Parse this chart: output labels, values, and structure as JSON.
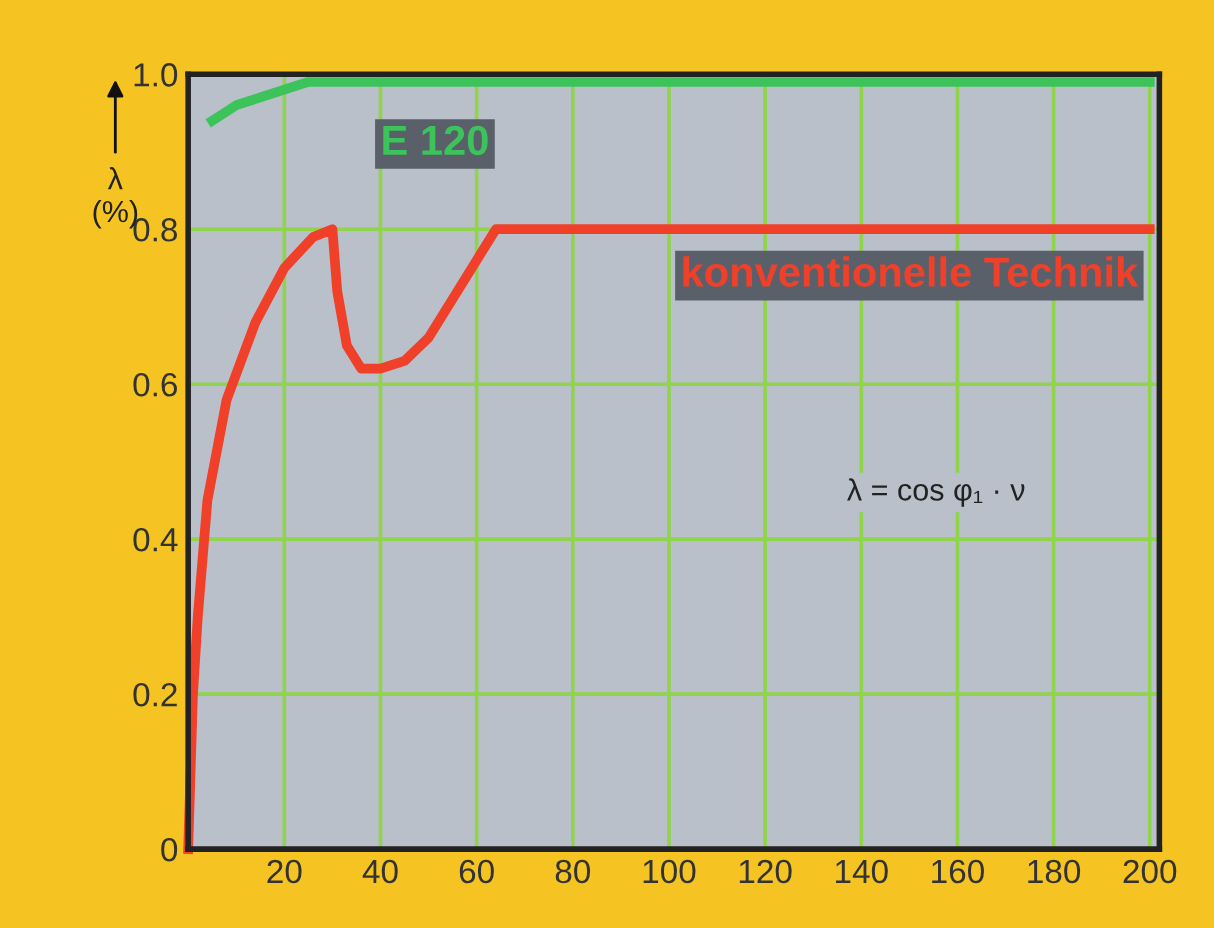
{
  "chart_data": {
    "type": "line",
    "ylabel": "λ\n(%)",
    "xlim": [
      0,
      202
    ],
    "ylim": [
      0,
      1.0
    ],
    "xticks": [
      20,
      40,
      60,
      80,
      100,
      120,
      140,
      160,
      180,
      200
    ],
    "yticks": [
      0,
      0.2,
      0.4,
      0.6,
      0.8,
      {
        "value": 1.0,
        "label": "1.0"
      }
    ],
    "grid": true,
    "legend": false,
    "line_style": "solid",
    "marker": "none",
    "series": [
      {
        "name": "E 120",
        "color": "#3cc45a",
        "x": [
          5,
          10,
          15,
          20,
          25,
          30,
          40,
          60,
          100,
          150,
          200
        ],
        "values": [
          0.94,
          0.96,
          0.97,
          0.98,
          0.99,
          0.99,
          0.99,
          0.99,
          0.99,
          0.99,
          0.99
        ]
      },
      {
        "name": "konventionelle Technik",
        "color": "#f0402a",
        "x": [
          0,
          1,
          2,
          4,
          8,
          14,
          20,
          26,
          30,
          31,
          33,
          36,
          40,
          45,
          50,
          56,
          60,
          64,
          100,
          150,
          200
        ],
        "values": [
          0,
          0.2,
          0.3,
          0.45,
          0.58,
          0.68,
          0.75,
          0.79,
          0.8,
          0.72,
          0.65,
          0.62,
          0.62,
          0.63,
          0.66,
          0.72,
          0.76,
          0.8,
          0.8,
          0.8,
          0.8
        ]
      }
    ],
    "annotations": [
      "λ = cos φ₁ · ν"
    ]
  }
}
